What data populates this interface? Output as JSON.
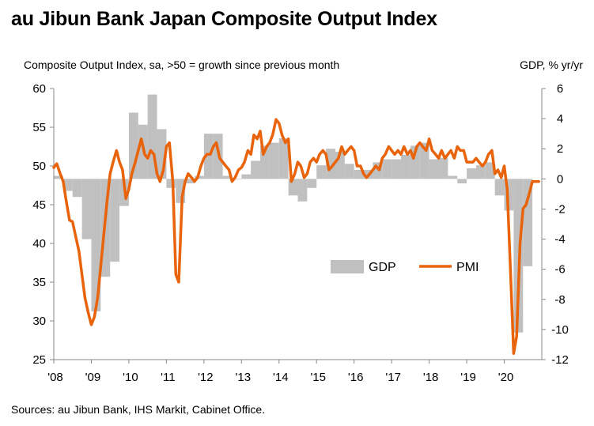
{
  "chart_data": {
    "type": "bar+line",
    "title": "au Jibun Bank Japan Composite Output Index",
    "left_axis_label": "Composite Output Index, sa, >50 = growth since previous month",
    "right_axis_label": "GDP, % yr/yr",
    "source": "Sources: au Jibun Bank, IHS Markit, Cabinet Office.",
    "left_axis": {
      "min": 25,
      "max": 60,
      "ticks": [
        "25",
        "30",
        "35",
        "40",
        "45",
        "50",
        "55",
        "60"
      ]
    },
    "right_axis": {
      "min": -12,
      "max": 6,
      "ticks": [
        "-12",
        "-10",
        "-8",
        "-6",
        "-4",
        "-2",
        "0",
        "2",
        "4",
        "6"
      ]
    },
    "x_axis": {
      "start": 2008.0,
      "end": 2021.0,
      "ticks": [
        "'08",
        "'09",
        "'10",
        "'11",
        "'12",
        "'13",
        "'14",
        "'15",
        "'16",
        "'17",
        "'18",
        "'19",
        "'20"
      ]
    },
    "legend": {
      "bar_label": "GDP",
      "line_label": "PMI",
      "position": "bottom-right"
    },
    "colors": {
      "bar": "#c0c0c0",
      "line": "#e8630a",
      "axis": "#888888"
    },
    "series": [
      {
        "name": "GDP",
        "type": "bar",
        "axis": "right",
        "quarters": [
          "2008Q1",
          "2008Q2",
          "2008Q3",
          "2008Q4",
          "2009Q1",
          "2009Q2",
          "2009Q3",
          "2009Q4",
          "2010Q1",
          "2010Q2",
          "2010Q3",
          "2010Q4",
          "2011Q1",
          "2011Q2",
          "2011Q3",
          "2011Q4",
          "2012Q1",
          "2012Q2",
          "2012Q3",
          "2012Q4",
          "2013Q1",
          "2013Q2",
          "2013Q3",
          "2013Q4",
          "2014Q1",
          "2014Q2",
          "2014Q3",
          "2014Q4",
          "2015Q1",
          "2015Q2",
          "2015Q3",
          "2015Q4",
          "2016Q1",
          "2016Q2",
          "2016Q3",
          "2016Q4",
          "2017Q1",
          "2017Q2",
          "2017Q3",
          "2017Q4",
          "2018Q1",
          "2018Q2",
          "2018Q3",
          "2018Q4",
          "2019Q1",
          "2019Q2",
          "2019Q3",
          "2019Q4",
          "2020Q1",
          "2020Q2",
          "2020Q3"
        ],
        "values": [
          0.2,
          -0.8,
          -1.2,
          -4.0,
          -8.8,
          -6.5,
          -5.5,
          -1.8,
          4.4,
          3.6,
          5.6,
          3.3,
          -0.6,
          -1.6,
          -0.3,
          0.2,
          3.0,
          3.0,
          0.2,
          0.0,
          0.3,
          1.2,
          2.2,
          2.4,
          2.7,
          -1.1,
          -1.5,
          -0.6,
          0.9,
          2.0,
          1.8,
          1.0,
          0.6,
          0.6,
          1.1,
          1.3,
          1.3,
          1.6,
          2.2,
          2.4,
          1.3,
          1.4,
          0.2,
          -0.3,
          0.7,
          0.9,
          1.1,
          -1.1,
          -2.1,
          -10.2,
          -5.8
        ]
      },
      {
        "name": "PMI",
        "type": "line",
        "axis": "left",
        "points": [
          [
            2008.0,
            49.8
          ],
          [
            2008.08,
            50.3
          ],
          [
            2008.17,
            49.0
          ],
          [
            2008.25,
            48.0
          ],
          [
            2008.33,
            45.5
          ],
          [
            2008.42,
            43.0
          ],
          [
            2008.5,
            42.8
          ],
          [
            2008.58,
            41.0
          ],
          [
            2008.67,
            39.0
          ],
          [
            2008.75,
            36.0
          ],
          [
            2008.83,
            33.0
          ],
          [
            2008.92,
            31.0
          ],
          [
            2009.0,
            29.5
          ],
          [
            2009.08,
            30.5
          ],
          [
            2009.17,
            33.0
          ],
          [
            2009.25,
            37.0
          ],
          [
            2009.33,
            41.0
          ],
          [
            2009.42,
            45.5
          ],
          [
            2009.5,
            49.0
          ],
          [
            2009.58,
            50.5
          ],
          [
            2009.67,
            52.0
          ],
          [
            2009.75,
            50.5
          ],
          [
            2009.83,
            49.5
          ],
          [
            2009.92,
            45.8
          ],
          [
            2010.0,
            47.0
          ],
          [
            2010.08,
            49.0
          ],
          [
            2010.17,
            50.5
          ],
          [
            2010.25,
            52.0
          ],
          [
            2010.33,
            53.5
          ],
          [
            2010.42,
            51.5
          ],
          [
            2010.5,
            51.0
          ],
          [
            2010.58,
            52.0
          ],
          [
            2010.67,
            51.5
          ],
          [
            2010.75,
            49.0
          ],
          [
            2010.83,
            48.0
          ],
          [
            2010.92,
            49.5
          ],
          [
            2011.0,
            52.5
          ],
          [
            2011.08,
            53.0
          ],
          [
            2011.17,
            48.0
          ],
          [
            2011.25,
            36.0
          ],
          [
            2011.33,
            35.0
          ],
          [
            2011.42,
            46.0
          ],
          [
            2011.5,
            48.0
          ],
          [
            2011.58,
            49.0
          ],
          [
            2011.67,
            48.5
          ],
          [
            2011.75,
            48.0
          ],
          [
            2011.83,
            48.5
          ],
          [
            2011.92,
            50.0
          ],
          [
            2012.0,
            51.0
          ],
          [
            2012.08,
            51.5
          ],
          [
            2012.17,
            51.5
          ],
          [
            2012.25,
            52.5
          ],
          [
            2012.33,
            53.0
          ],
          [
            2012.42,
            51.0
          ],
          [
            2012.5,
            50.5
          ],
          [
            2012.58,
            50.0
          ],
          [
            2012.67,
            49.5
          ],
          [
            2012.75,
            48.0
          ],
          [
            2012.83,
            48.5
          ],
          [
            2012.92,
            49.5
          ],
          [
            2013.0,
            49.8
          ],
          [
            2013.08,
            50.5
          ],
          [
            2013.17,
            52.0
          ],
          [
            2013.25,
            51.5
          ],
          [
            2013.33,
            54.0
          ],
          [
            2013.42,
            53.5
          ],
          [
            2013.5,
            54.5
          ],
          [
            2013.58,
            51.5
          ],
          [
            2013.67,
            52.5
          ],
          [
            2013.75,
            53.0
          ],
          [
            2013.83,
            54.0
          ],
          [
            2013.92,
            56.0
          ],
          [
            2014.0,
            55.5
          ],
          [
            2014.08,
            54.0
          ],
          [
            2014.17,
            53.0
          ],
          [
            2014.25,
            53.5
          ],
          [
            2014.33,
            48.0
          ],
          [
            2014.42,
            49.0
          ],
          [
            2014.5,
            50.5
          ],
          [
            2014.58,
            50.0
          ],
          [
            2014.67,
            48.5
          ],
          [
            2014.75,
            49.0
          ],
          [
            2014.83,
            50.5
          ],
          [
            2014.92,
            51.0
          ],
          [
            2015.0,
            50.5
          ],
          [
            2015.08,
            51.5
          ],
          [
            2015.17,
            52.0
          ],
          [
            2015.25,
            51.5
          ],
          [
            2015.33,
            49.5
          ],
          [
            2015.42,
            50.0
          ],
          [
            2015.5,
            50.5
          ],
          [
            2015.58,
            51.0
          ],
          [
            2015.67,
            52.5
          ],
          [
            2015.75,
            51.5
          ],
          [
            2015.83,
            52.0
          ],
          [
            2015.92,
            52.5
          ],
          [
            2016.0,
            52.0
          ],
          [
            2016.08,
            50.0
          ],
          [
            2016.17,
            50.0
          ],
          [
            2016.25,
            49.0
          ],
          [
            2016.33,
            48.5
          ],
          [
            2016.42,
            49.0
          ],
          [
            2016.5,
            49.5
          ],
          [
            2016.58,
            50.0
          ],
          [
            2016.67,
            49.5
          ],
          [
            2016.75,
            51.0
          ],
          [
            2016.83,
            51.5
          ],
          [
            2016.92,
            52.5
          ],
          [
            2017.0,
            52.0
          ],
          [
            2017.08,
            51.5
          ],
          [
            2017.17,
            52.0
          ],
          [
            2017.25,
            51.5
          ],
          [
            2017.33,
            52.5
          ],
          [
            2017.42,
            51.5
          ],
          [
            2017.5,
            52.0
          ],
          [
            2017.58,
            51.0
          ],
          [
            2017.67,
            52.5
          ],
          [
            2017.75,
            53.0
          ],
          [
            2017.83,
            52.5
          ],
          [
            2017.92,
            52.0
          ],
          [
            2018.0,
            53.5
          ],
          [
            2018.08,
            52.0
          ],
          [
            2018.17,
            51.5
          ],
          [
            2018.25,
            51.0
          ],
          [
            2018.33,
            52.0
          ],
          [
            2018.42,
            51.0
          ],
          [
            2018.5,
            51.5
          ],
          [
            2018.58,
            52.0
          ],
          [
            2018.67,
            51.0
          ],
          [
            2018.75,
            52.5
          ],
          [
            2018.83,
            52.0
          ],
          [
            2018.92,
            52.0
          ],
          [
            2019.0,
            50.5
          ],
          [
            2019.08,
            50.5
          ],
          [
            2019.17,
            50.5
          ],
          [
            2019.25,
            51.0
          ],
          [
            2019.33,
            50.5
          ],
          [
            2019.42,
            50.0
          ],
          [
            2019.5,
            50.5
          ],
          [
            2019.58,
            51.5
          ],
          [
            2019.67,
            52.0
          ],
          [
            2019.75,
            49.0
          ],
          [
            2019.83,
            49.5
          ],
          [
            2019.92,
            48.5
          ],
          [
            2020.0,
            50.0
          ],
          [
            2020.08,
            47.0
          ],
          [
            2020.17,
            36.0
          ],
          [
            2020.25,
            25.8
          ],
          [
            2020.33,
            28.0
          ],
          [
            2020.42,
            40.0
          ],
          [
            2020.5,
            44.5
          ],
          [
            2020.58,
            45.0
          ],
          [
            2020.67,
            46.5
          ],
          [
            2020.75,
            48.0
          ],
          [
            2020.83,
            48.0
          ],
          [
            2020.92,
            48.0
          ]
        ]
      }
    ]
  }
}
